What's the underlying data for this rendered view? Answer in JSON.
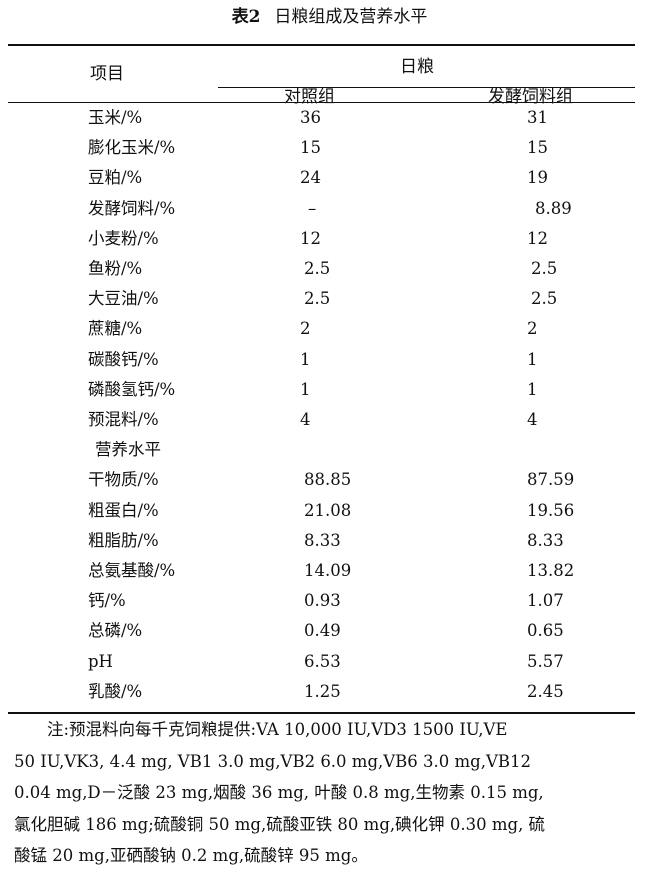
{
  "table": {
    "label": "表2",
    "title": "日粮组成及营养水平",
    "header": {
      "item": "项目",
      "group": "日粮",
      "col1": "对照组",
      "col2": "发酵饲料组"
    },
    "rows": [
      {
        "name": "玉米/%",
        "control": "36",
        "fermented": "31"
      },
      {
        "name": "膨化玉米/%",
        "control": "15",
        "fermented": "15"
      },
      {
        "name": "豆粕/%",
        "control": "24",
        "fermented": "19"
      },
      {
        "name": "发酵饲料/%",
        "control": "–",
        "fermented": "8.89"
      },
      {
        "name": "小麦粉/%",
        "control": "12",
        "fermented": "12"
      },
      {
        "name": "鱼粉/%",
        "control": "2.5",
        "fermented": "2.5"
      },
      {
        "name": "大豆油/%",
        "control": "2.5",
        "fermented": "2.5"
      },
      {
        "name": "蔗糖/%",
        "control": "2",
        "fermented": "2"
      },
      {
        "name": "碳酸钙/%",
        "control": "1",
        "fermented": "1"
      },
      {
        "name": "磷酸氢钙/%",
        "control": "1",
        "fermented": "1"
      },
      {
        "name": "预混料/%",
        "control": "4",
        "fermented": "4"
      },
      {
        "name": "营养水平",
        "control": "",
        "fermented": ""
      },
      {
        "name": "干物质/%",
        "control": "88.85",
        "fermented": "87.59"
      },
      {
        "name": "粗蛋白/%",
        "control": "21.08",
        "fermented": "19.56"
      },
      {
        "name": "粗脂肪/%",
        "control": "8.33",
        "fermented": "8.33"
      },
      {
        "name": "总氨基酸/%",
        "control": "14.09",
        "fermented": "13.82"
      },
      {
        "name": "钙/%",
        "control": "0.93",
        "fermented": "1.07"
      },
      {
        "name": "总磷/%",
        "control": "0.49",
        "fermented": "0.65"
      },
      {
        "name": "pH",
        "control": "6.53",
        "fermented": "5.57"
      },
      {
        "name": "乳酸/%",
        "control": "1.25",
        "fermented": "2.45"
      }
    ],
    "note_lines": [
      "注:预混料向每千克饲粮提供:VA 10,000 IU,VD3 1500 IU,VE",
      "50 IU,VK3, 4.4 mg, VB1 3.0 mg,VB2 6.0 mg,VB6 3.0 mg,VB12",
      "0.04 mg,D－泛酸 23 mg,烟酸 36 mg, 叶酸 0.8 mg,生物素 0.15 mg,",
      "氯化胆碱 186 mg;硫酸铜 50 mg,硫酸亚铁 80 mg,碘化钾 0.30 mg, 硫",
      "酸锰 20 mg,亚硒酸钠 0.2 mg,硫酸锌 95 mg。"
    ]
  }
}
